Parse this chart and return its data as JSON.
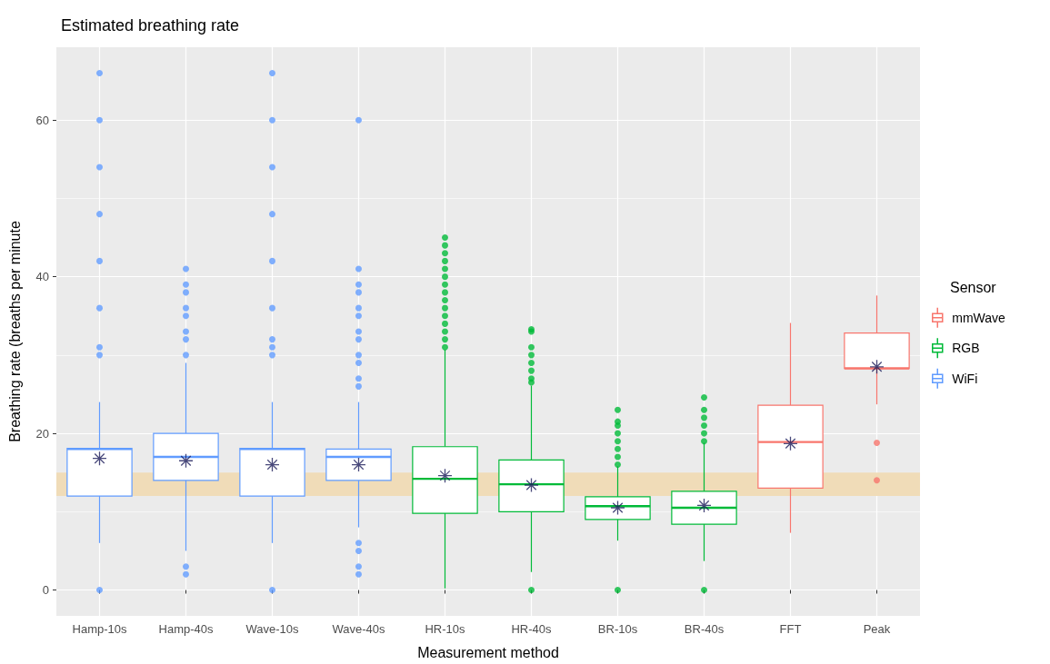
{
  "chart_data": {
    "type": "box",
    "title": "Estimated breathing rate",
    "xlabel": "Measurement method",
    "ylabel": "Breathing rate (breaths per minute",
    "legend_title": "Sensor",
    "legend": "right",
    "grid": true,
    "categories": [
      "Hamp-10s",
      "Hamp-40s",
      "Wave-10s",
      "Wave-40s",
      "HR-10s",
      "HR-40s",
      "BR-10s",
      "BR-40s",
      "FFT",
      "Peak"
    ],
    "ylim": [
      -3.3,
      69.3
    ],
    "yticks": [
      0,
      {
        "value": 10,
        "label": null
      },
      20,
      {
        "value": 30,
        "label": null
      },
      40,
      {
        "value": 50,
        "label": null
      },
      60
    ],
    "bands": [
      {
        "axis": "y",
        "from": 12,
        "to": 15,
        "color": "#f0dcb8"
      }
    ],
    "series": [
      {
        "name": "mmWave",
        "color": "#f8766d",
        "boxes": [
          null,
          null,
          null,
          null,
          null,
          null,
          null,
          null,
          {
            "low": 7.3,
            "q1": 13,
            "median": 18.9,
            "q3": 23.6,
            "high": 34.1,
            "mean": 18.7
          },
          {
            "low": 23.7,
            "q1": 28.3,
            "median": 28.3,
            "q3": 32.8,
            "high": 37.6,
            "mean": 28.5,
            "outliers": [
              14,
              18.8
            ]
          }
        ]
      },
      {
        "name": "RGB",
        "color": "#00ba38",
        "boxes": [
          null,
          null,
          null,
          null,
          {
            "low": 0.2,
            "q1": 9.8,
            "median": 14.2,
            "q3": 18.3,
            "high": 30.7,
            "mean": 14.6,
            "outliers": [
              31,
              32,
              33,
              34,
              35,
              36,
              37,
              38,
              39,
              40,
              41,
              42,
              43,
              44,
              45
            ]
          },
          {
            "low": 2.3,
            "q1": 10,
            "median": 13.5,
            "q3": 16.6,
            "high": 26.1,
            "mean": 13.4,
            "outliers": [
              0,
              26.5,
              27,
              28,
              29,
              30,
              31,
              33,
              33.3
            ]
          },
          {
            "low": 6.3,
            "q1": 9,
            "median": 10.7,
            "q3": 11.9,
            "high": 15.8,
            "mean": 10.5,
            "outliers": [
              0,
              16,
              17,
              18,
              19,
              20,
              21,
              21.5,
              23
            ]
          },
          {
            "low": 3.7,
            "q1": 8.4,
            "median": 10.5,
            "q3": 12.6,
            "high": 18.8,
            "mean": 10.8,
            "outliers": [
              0,
              19,
              20,
              21,
              22,
              23,
              24.6
            ]
          },
          null,
          null
        ]
      },
      {
        "name": "WiFi",
        "color": "#619cff",
        "boxes": [
          {
            "low": 6,
            "q1": 12,
            "median": 18,
            "q3": 18.1,
            "high": 24,
            "mean": 16.8,
            "outliers": [
              0,
              30,
              31,
              36,
              42,
              48,
              54,
              60,
              66
            ]
          },
          {
            "low": 5,
            "q1": 14,
            "median": 17,
            "q3": 20,
            "high": 29,
            "mean": 16.5,
            "outliers": [
              2,
              3,
              30,
              32,
              33,
              35,
              36,
              38,
              39,
              41
            ]
          },
          {
            "low": 6,
            "q1": 12,
            "median": 18,
            "q3": 18.1,
            "high": 24,
            "mean": 16,
            "outliers": [
              0,
              30,
              31,
              32,
              36,
              42,
              48,
              54,
              60,
              66
            ]
          },
          {
            "low": 8,
            "q1": 14,
            "median": 17,
            "q3": 18,
            "high": 24,
            "mean": 16,
            "outliers": [
              2,
              3,
              5,
              6,
              26,
              27,
              29,
              30,
              32,
              33,
              35,
              36,
              38,
              39,
              41,
              60
            ]
          },
          null,
          null,
          null,
          null,
          null,
          null
        ]
      }
    ]
  }
}
